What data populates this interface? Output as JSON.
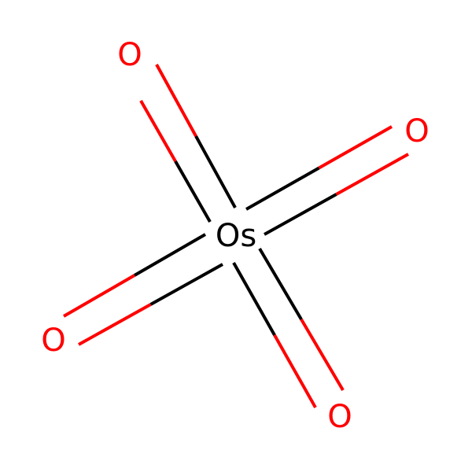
{
  "molecule": {
    "center_atom": {
      "label": "Os",
      "color": "#000000"
    },
    "oxygen_atoms": [
      {
        "id": "o-top",
        "label": "O",
        "color": "#ff0000"
      },
      {
        "id": "o-right",
        "label": "O",
        "color": "#ff0000"
      },
      {
        "id": "o-left",
        "label": "O",
        "color": "#ff0000"
      },
      {
        "id": "o-bottom",
        "label": "O",
        "color": "#ff0000"
      }
    ],
    "bonds": [
      {
        "from": "Os",
        "to": "o-top",
        "order": 2
      },
      {
        "from": "Os",
        "to": "o-right",
        "order": 2
      },
      {
        "from": "Os",
        "to": "o-left",
        "order": 2
      },
      {
        "from": "Os",
        "to": "o-bottom",
        "order": 2
      }
    ],
    "colors": {
      "bond_carbon": "#000000",
      "oxygen": "#ff0000"
    }
  }
}
